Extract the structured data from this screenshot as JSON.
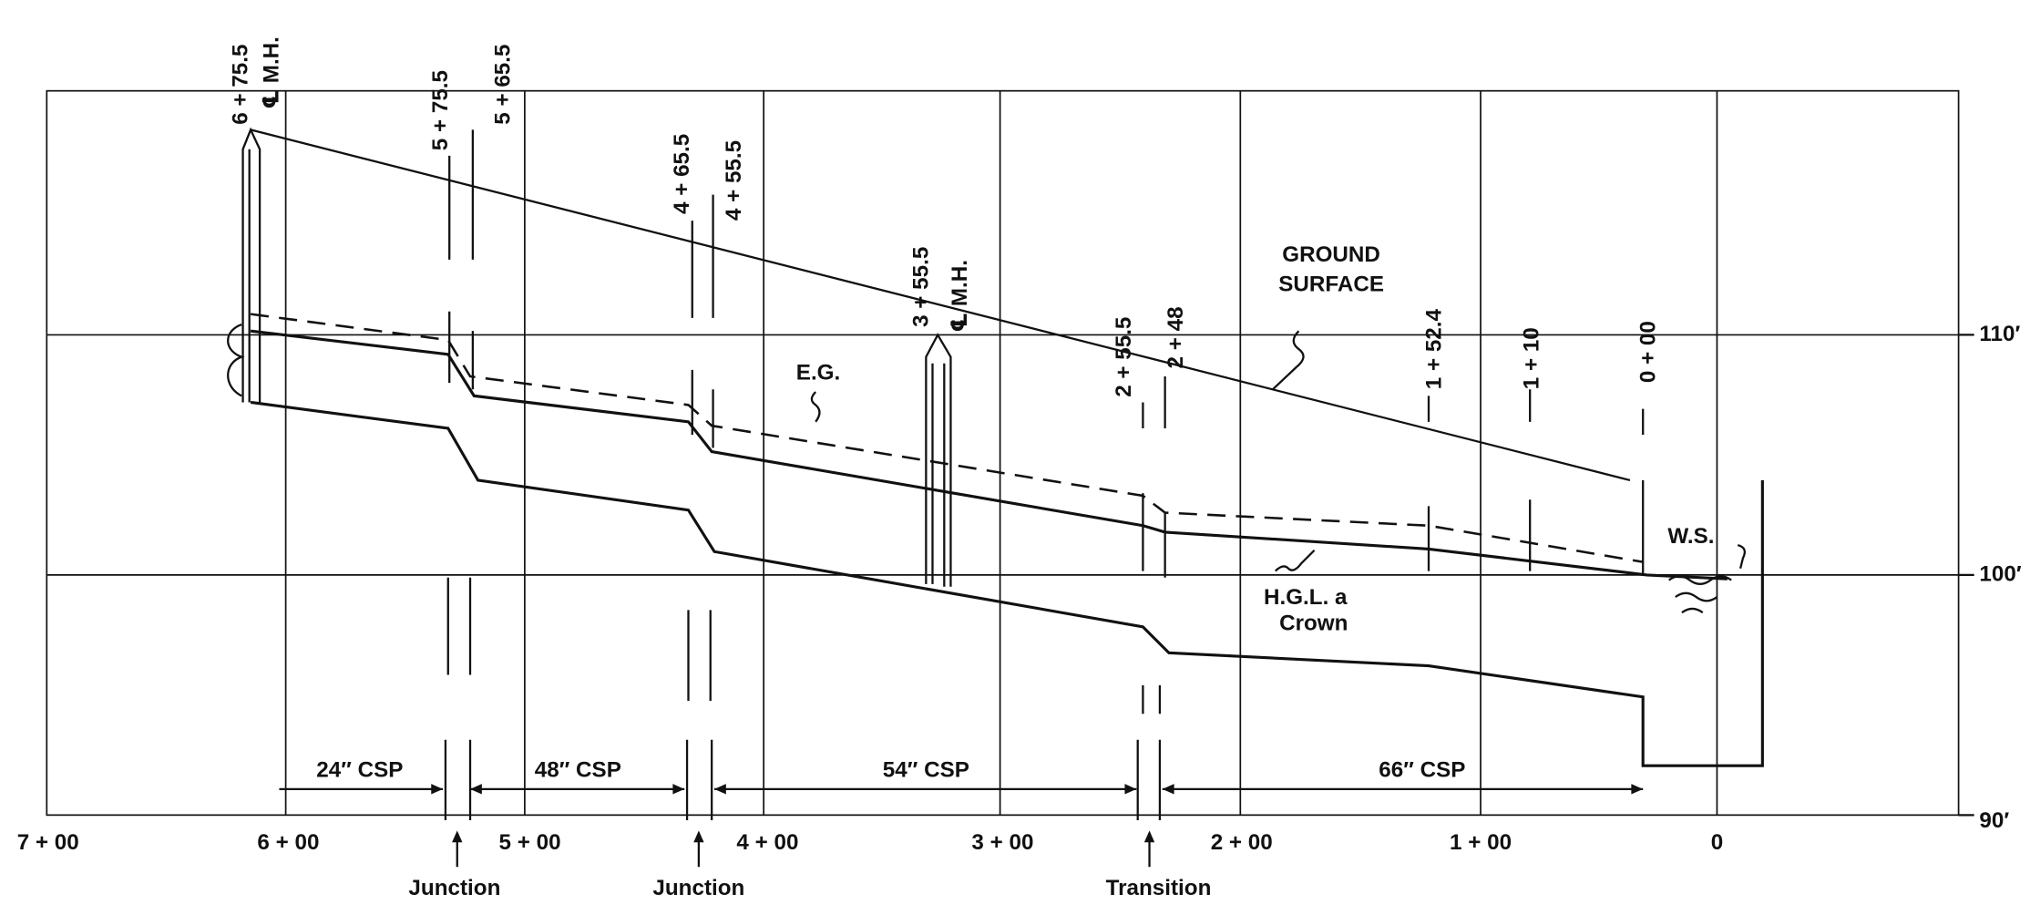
{
  "profile_labels": [
    "6 + 75.5",
    "℄ M.H.",
    "5 + 75.5",
    "5 + 65.5",
    "4 + 65.5",
    "4 + 55.5",
    "3 + 55.5",
    "℄ M.H.",
    "2 + 55.5",
    "2 + 48",
    "1 + 52.4",
    "1 + 10",
    "0 + 00"
  ],
  "stations": [
    "7 + 00",
    "6 + 00",
    "5 + 00",
    "4 + 00",
    "3 + 00",
    "2 + 00",
    "1 + 00",
    "0"
  ],
  "elevations": [
    "110′",
    "100′",
    "90′"
  ],
  "pipes": [
    "24″ CSP",
    "48″ CSP",
    "54″ CSP",
    "66″ CSP"
  ],
  "structures": [
    "Junction",
    "Junction",
    "Transition"
  ],
  "notes": {
    "ground": [
      "GROUND",
      "SURFACE"
    ],
    "energy_grade": "E.G.",
    "hgl": [
      "H.G.L. a",
      "Crown"
    ],
    "water_surface": "W.S."
  }
}
